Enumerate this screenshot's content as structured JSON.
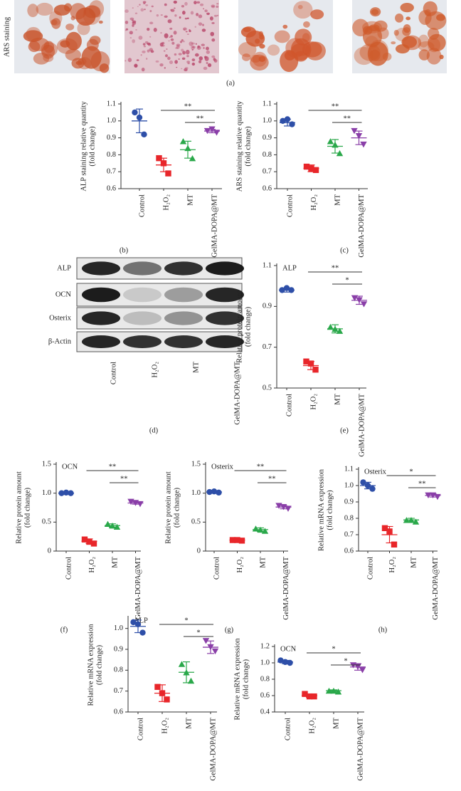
{
  "figure": {
    "ars_label": "ARS staining",
    "panel_a": "(a)",
    "blot": {
      "labels": [
        "ALP",
        "OCN",
        "Osterix",
        "β-Actin"
      ],
      "categories": [
        "Control",
        "H₂O₂",
        "MT",
        "GelMA-DOPA@MT"
      ],
      "panel": "(d)"
    }
  },
  "chart_data": [
    {
      "type": "dot",
      "panel": "(b)",
      "ylabel": [
        "ALP staining relative quantity",
        "(fold change)"
      ],
      "categories": [
        "Control",
        "H₂O₂",
        "MT",
        "GelMA-DOPA@MT"
      ],
      "colors": [
        "#2e4fa8",
        "#e8262a",
        "#2aa84a",
        "#8a3fa8"
      ],
      "markers": [
        "circle",
        "square",
        "triangle",
        "triangle-down"
      ],
      "points": [
        [
          1.05,
          1.02,
          0.92
        ],
        [
          0.78,
          0.75,
          0.69
        ],
        [
          0.88,
          0.84,
          0.78
        ],
        [
          0.94,
          0.95,
          0.93
        ]
      ],
      "means": [
        1.0,
        0.74,
        0.83,
        0.94
      ],
      "sd": [
        0.07,
        0.04,
        0.05,
        0.01
      ],
      "ylim": [
        0.6,
        1.1
      ],
      "yticks": [
        0.6,
        0.7,
        0.8,
        0.9,
        {
          "value": 1,
          "label": "1.0"
        },
        1.1
      ],
      "significance": [
        {
          "groups": [
            1,
            3
          ],
          "label": "**"
        },
        {
          "groups": [
            2,
            3
          ],
          "label": "**"
        }
      ]
    },
    {
      "type": "dot",
      "panel": "(c)",
      "ylabel": [
        "ARS staining relative quantity",
        "(fold change)"
      ],
      "categories": [
        "Control",
        "H₂O₂",
        "MT",
        "GelMA-DOPA@MT"
      ],
      "colors": [
        "#2e4fa8",
        "#e8262a",
        "#2aa84a",
        "#8a3fa8"
      ],
      "markers": [
        "circle",
        "square",
        "triangle",
        "triangle-down"
      ],
      "points": [
        [
          1.0,
          1.01,
          0.98
        ],
        [
          0.73,
          0.72,
          0.71
        ],
        [
          0.88,
          0.86,
          0.81
        ],
        [
          0.94,
          0.91,
          0.86
        ]
      ],
      "means": [
        0.99,
        0.72,
        0.85,
        0.9
      ],
      "sd": [
        0.02,
        0.02,
        0.04,
        0.04
      ],
      "ylim": [
        0.6,
        1.1
      ],
      "yticks": [
        0.6,
        0.7,
        0.8,
        0.9,
        {
          "value": 1,
          "label": "1.0"
        },
        1.1
      ],
      "significance": [
        {
          "groups": [
            1,
            3
          ],
          "label": "**"
        },
        {
          "groups": [
            2,
            3
          ],
          "label": "**"
        }
      ]
    },
    {
      "type": "dot",
      "panel": "(e)",
      "title": "ALP",
      "ylabel": [
        "Relative protein amount",
        "(fold change)"
      ],
      "categories": [
        "Control",
        "H₂O₂",
        "MT",
        "GelMA-DOPA@MT"
      ],
      "colors": [
        "#2e4fa8",
        "#e8262a",
        "#2aa84a",
        "#8a3fa8"
      ],
      "markers": [
        "circle",
        "square",
        "triangle",
        "triangle-down"
      ],
      "points": [
        [
          0.98,
          0.99,
          0.98
        ],
        [
          0.63,
          0.62,
          0.59
        ],
        [
          0.8,
          0.79,
          0.78
        ],
        [
          0.94,
          0.93,
          0.91
        ]
      ],
      "means": [
        0.98,
        0.61,
        0.79,
        0.93
      ],
      "sd": [
        0.01,
        0.02,
        0.02,
        0.02
      ],
      "ylim": [
        0.5,
        1.1
      ],
      "yticks": [
        0.5,
        0.7,
        0.9,
        1.1
      ],
      "significance": [
        {
          "groups": [
            1,
            3
          ],
          "label": "**"
        },
        {
          "groups": [
            2,
            3
          ],
          "label": "*"
        }
      ]
    },
    {
      "type": "dot",
      "panel": "(f)",
      "title": "OCN",
      "ylabel": [
        "Relative protein amount",
        "(fold change)"
      ],
      "categories": [
        "Control",
        "H₂O₂",
        "MT",
        "GelMA-DOPA@MT"
      ],
      "colors": [
        "#2e4fa8",
        "#e8262a",
        "#2aa84a",
        "#8a3fa8"
      ],
      "markers": [
        "circle",
        "square",
        "triangle",
        "triangle-down"
      ],
      "points": [
        [
          1.0,
          1.01,
          1.0
        ],
        [
          0.2,
          0.16,
          0.13
        ],
        [
          0.47,
          0.44,
          0.42
        ],
        [
          0.85,
          0.83,
          0.81
        ]
      ],
      "means": [
        1.0,
        0.17,
        0.44,
        0.83
      ],
      "sd": [
        0.01,
        0.04,
        0.03,
        0.02
      ],
      "ylim": [
        0,
        1.5
      ],
      "yticks": [
        0,
        0.5,
        {
          "value": 1,
          "label": "1.0"
        },
        1.5
      ],
      "significance": [
        {
          "groups": [
            1,
            3
          ],
          "label": "**"
        },
        {
          "groups": [
            2,
            3
          ],
          "label": "**"
        }
      ]
    },
    {
      "type": "dot",
      "panel": "(g)",
      "title": "Osterix",
      "ylabel": [
        "Relative protein amount",
        "(fold change)"
      ],
      "categories": [
        "Control",
        "H₂O₂",
        "MT",
        "GelMA-DOPA@MT"
      ],
      "colors": [
        "#2e4fa8",
        "#e8262a",
        "#2aa84a",
        "#8a3fa8"
      ],
      "markers": [
        "circle",
        "square",
        "triangle",
        "triangle-down"
      ],
      "points": [
        [
          1.02,
          1.03,
          1.01
        ],
        [
          0.19,
          0.19,
          0.18
        ],
        [
          0.39,
          0.37,
          0.35
        ],
        [
          0.78,
          0.76,
          0.73
        ]
      ],
      "means": [
        1.02,
        0.19,
        0.37,
        0.76
      ],
      "sd": [
        0.01,
        0.01,
        0.03,
        0.03
      ],
      "ylim": [
        0,
        1.5
      ],
      "yticks": [
        0,
        0.5,
        {
          "value": 1,
          "label": "1.0"
        },
        1.5
      ],
      "significance": [
        {
          "groups": [
            1,
            3
          ],
          "label": "**"
        },
        {
          "groups": [
            2,
            3
          ],
          "label": "**"
        }
      ]
    },
    {
      "type": "dot",
      "panel": "(h)",
      "title": "Osterix",
      "ylabel": [
        "Relative mRNA expression",
        "(fold change)"
      ],
      "categories": [
        "Control",
        "H₂O₂",
        "MT",
        "GelMA-DOPA@MT"
      ],
      "colors": [
        "#2e4fa8",
        "#e8262a",
        "#2aa84a",
        "#8a3fa8"
      ],
      "markers": [
        "circle",
        "square",
        "triangle",
        "triangle-down"
      ],
      "points": [
        [
          1.02,
          1.0,
          0.98
        ],
        [
          0.74,
          0.72,
          0.64
        ],
        [
          0.79,
          0.79,
          0.78
        ],
        [
          0.94,
          0.94,
          0.93
        ]
      ],
      "means": [
        1.0,
        0.7,
        0.79,
        0.94
      ],
      "sd": [
        0.02,
        0.05,
        0.01,
        0.01
      ],
      "ylim": [
        0.6,
        1.1
      ],
      "yticks": [
        0.6,
        0.7,
        0.8,
        0.9,
        {
          "value": 1,
          "label": "1.0"
        },
        1.1
      ],
      "significance": [
        {
          "groups": [
            1,
            3
          ],
          "label": "*"
        },
        {
          "groups": [
            2,
            3
          ],
          "label": "**"
        }
      ]
    },
    {
      "type": "dot",
      "title": "ALP",
      "ylabel": [
        "Relative mRNA expression",
        "(fold change)"
      ],
      "categories": [
        "Control",
        "H₂O₂",
        "MT",
        "GelMA-DOPA@MT"
      ],
      "colors": [
        "#2e4fa8",
        "#e8262a",
        "#2aa84a",
        "#8a3fa8"
      ],
      "markers": [
        "circle",
        "square",
        "triangle",
        "triangle-down"
      ],
      "points": [
        [
          1.03,
          1.02,
          0.98
        ],
        [
          0.72,
          0.69,
          0.66
        ],
        [
          0.83,
          0.79,
          0.75
        ],
        [
          0.94,
          0.91,
          0.89
        ]
      ],
      "means": [
        1.01,
        0.69,
        0.79,
        0.91
      ],
      "sd": [
        0.03,
        0.04,
        0.05,
        0.03
      ],
      "ylim": [
        0.6,
        1.05
      ],
      "yticks": [
        0.6,
        0.7,
        0.8,
        0.9,
        {
          "value": 1,
          "label": "1.0"
        }
      ],
      "significance": [
        {
          "groups": [
            1,
            3
          ],
          "label": "*"
        },
        {
          "groups": [
            2,
            3
          ],
          "label": "*"
        }
      ]
    },
    {
      "type": "dot",
      "title": "OCN",
      "ylabel": [
        "Relative mRNA expression",
        "(fold change)"
      ],
      "categories": [
        "Control",
        "H₂O₂",
        "MT",
        "GelMA-DOPA@MT"
      ],
      "colors": [
        "#2e4fa8",
        "#e8262a",
        "#2aa84a",
        "#8a3fa8"
      ],
      "markers": [
        "circle",
        "square",
        "triangle",
        "triangle-down"
      ],
      "points": [
        [
          1.03,
          1.01,
          1.0
        ],
        [
          0.62,
          0.59,
          0.59
        ],
        [
          0.66,
          0.66,
          0.65
        ],
        [
          0.97,
          0.95,
          0.91
        ]
      ],
      "means": [
        1.01,
        0.6,
        0.66,
        0.95
      ],
      "sd": [
        0.02,
        0.02,
        0.01,
        0.04
      ],
      "ylim": [
        0.4,
        1.2
      ],
      "yticks": [
        0.4,
        0.6,
        0.8,
        {
          "value": 1,
          "label": "1.0"
        },
        1.2
      ],
      "significance": [
        {
          "groups": [
            1,
            3
          ],
          "label": "*"
        },
        {
          "groups": [
            2,
            3
          ],
          "label": "*"
        }
      ]
    }
  ]
}
